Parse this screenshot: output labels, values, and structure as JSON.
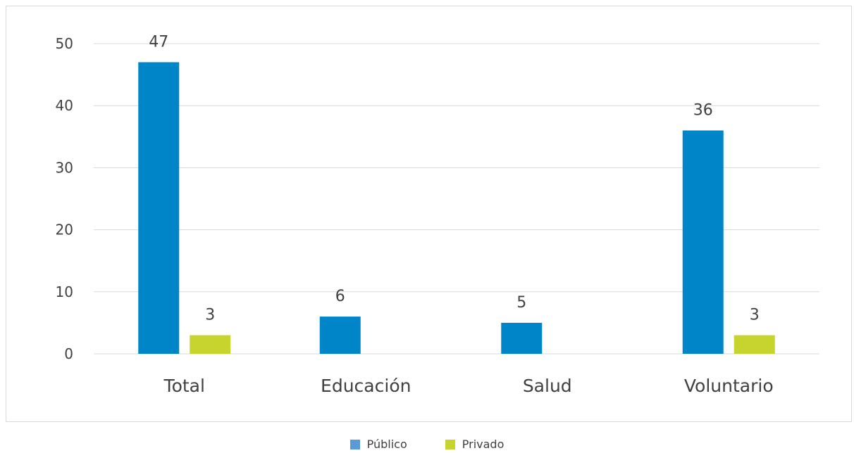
{
  "chart_data": {
    "type": "bar",
    "categories": [
      "Total",
      "Educación",
      "Salud",
      "Voluntario"
    ],
    "series": [
      {
        "name": "Público",
        "values": [
          47,
          6,
          5,
          36
        ],
        "color": "#0085c8"
      },
      {
        "name": "Privado",
        "values": [
          3,
          null,
          null,
          3
        ],
        "color": "#c8d42e"
      }
    ],
    "ylim": [
      0,
      50
    ],
    "yticks": [
      0,
      10,
      20,
      30,
      40,
      50
    ],
    "grid": true,
    "legend_position": "bottom",
    "data_labels": true
  }
}
